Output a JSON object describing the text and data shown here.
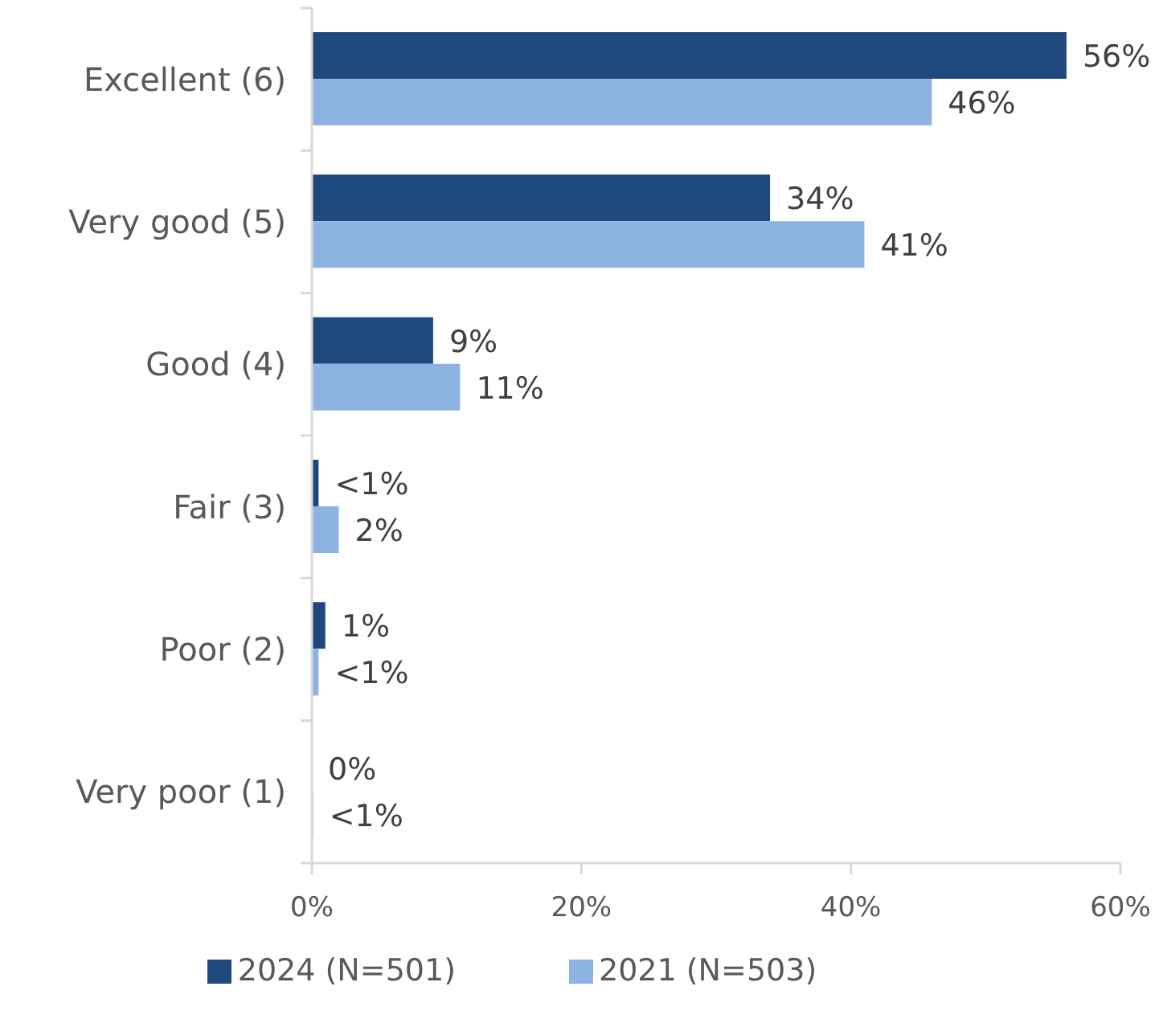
{
  "chart_data": {
    "type": "bar",
    "orientation": "horizontal",
    "categories": [
      "Excellent (6)",
      "Very good (5)",
      "Good (4)",
      "Fair (3)",
      "Poor (2)",
      "Very poor (1)"
    ],
    "series": [
      {
        "name": "2024 (N=501)",
        "color": "#1f497d",
        "values": [
          56,
          34,
          9,
          0.5,
          1,
          0
        ],
        "value_labels": [
          "56%",
          "34%",
          "9%",
          "<1%",
          "1%",
          "0%"
        ]
      },
      {
        "name": "2021 (N=503)",
        "color": "#8db3e2",
        "values": [
          46,
          41,
          11,
          2,
          0.5,
          0.1
        ],
        "value_labels": [
          "46%",
          "41%",
          "11%",
          "2%",
          "<1%",
          "<1%"
        ]
      }
    ],
    "xlim": [
      0,
      60
    ],
    "xticks": [
      {
        "value": 0,
        "label": "0%"
      },
      {
        "value": 20,
        "label": "20%"
      },
      {
        "value": 40,
        "label": "40%"
      },
      {
        "value": 60,
        "label": "60%"
      }
    ],
    "legend": "bottom"
  }
}
